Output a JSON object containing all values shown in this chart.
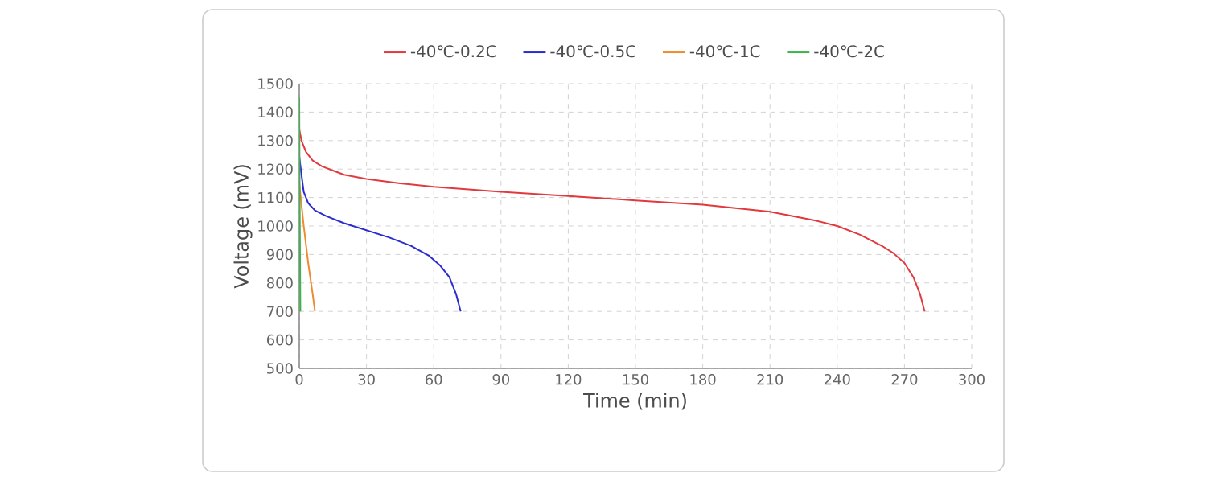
{
  "chart_data": {
    "type": "line",
    "xlabel": "Time (min)",
    "ylabel": "Voltage (mV)",
    "xlim": [
      0,
      300
    ],
    "xticks": [
      0,
      30,
      60,
      90,
      120,
      150,
      180,
      210,
      240,
      270,
      300
    ],
    "ylim": [
      500,
      1500
    ],
    "yticks": [
      500,
      600,
      700,
      800,
      900,
      1000,
      1100,
      1200,
      1300,
      1400,
      1500
    ],
    "grid": true,
    "legend": "top",
    "marker": "none",
    "line_style": "solid",
    "series": [
      {
        "name": "-40℃-0.2C",
        "color": "#e03a3e",
        "x": [
          0,
          1,
          3,
          6,
          10,
          15,
          20,
          30,
          45,
          60,
          90,
          120,
          150,
          180,
          210,
          230,
          240,
          250,
          260,
          265,
          270,
          274,
          277,
          279
        ],
        "values": [
          1340,
          1300,
          1260,
          1230,
          1210,
          1195,
          1180,
          1165,
          1150,
          1138,
          1120,
          1105,
          1090,
          1075,
          1050,
          1020,
          1000,
          970,
          930,
          905,
          870,
          820,
          760,
          700
        ]
      },
      {
        "name": "-40℃-0.5C",
        "color": "#2b2bd0",
        "x": [
          0,
          1,
          2,
          4,
          7,
          12,
          20,
          30,
          40,
          50,
          58,
          63,
          67,
          70,
          72
        ],
        "values": [
          1245,
          1180,
          1120,
          1080,
          1055,
          1035,
          1010,
          985,
          960,
          930,
          895,
          860,
          820,
          760,
          700
        ]
      },
      {
        "name": "-40℃-1C",
        "color": "#f08a30",
        "x": [
          0,
          2,
          4,
          6,
          7
        ],
        "values": [
          1150,
          1000,
          870,
          760,
          700
        ]
      },
      {
        "name": "-40℃-2C",
        "color": "#3cb44b",
        "x": [
          0,
          0.2,
          0.5
        ],
        "values": [
          1450,
          1100,
          700
        ]
      }
    ]
  }
}
